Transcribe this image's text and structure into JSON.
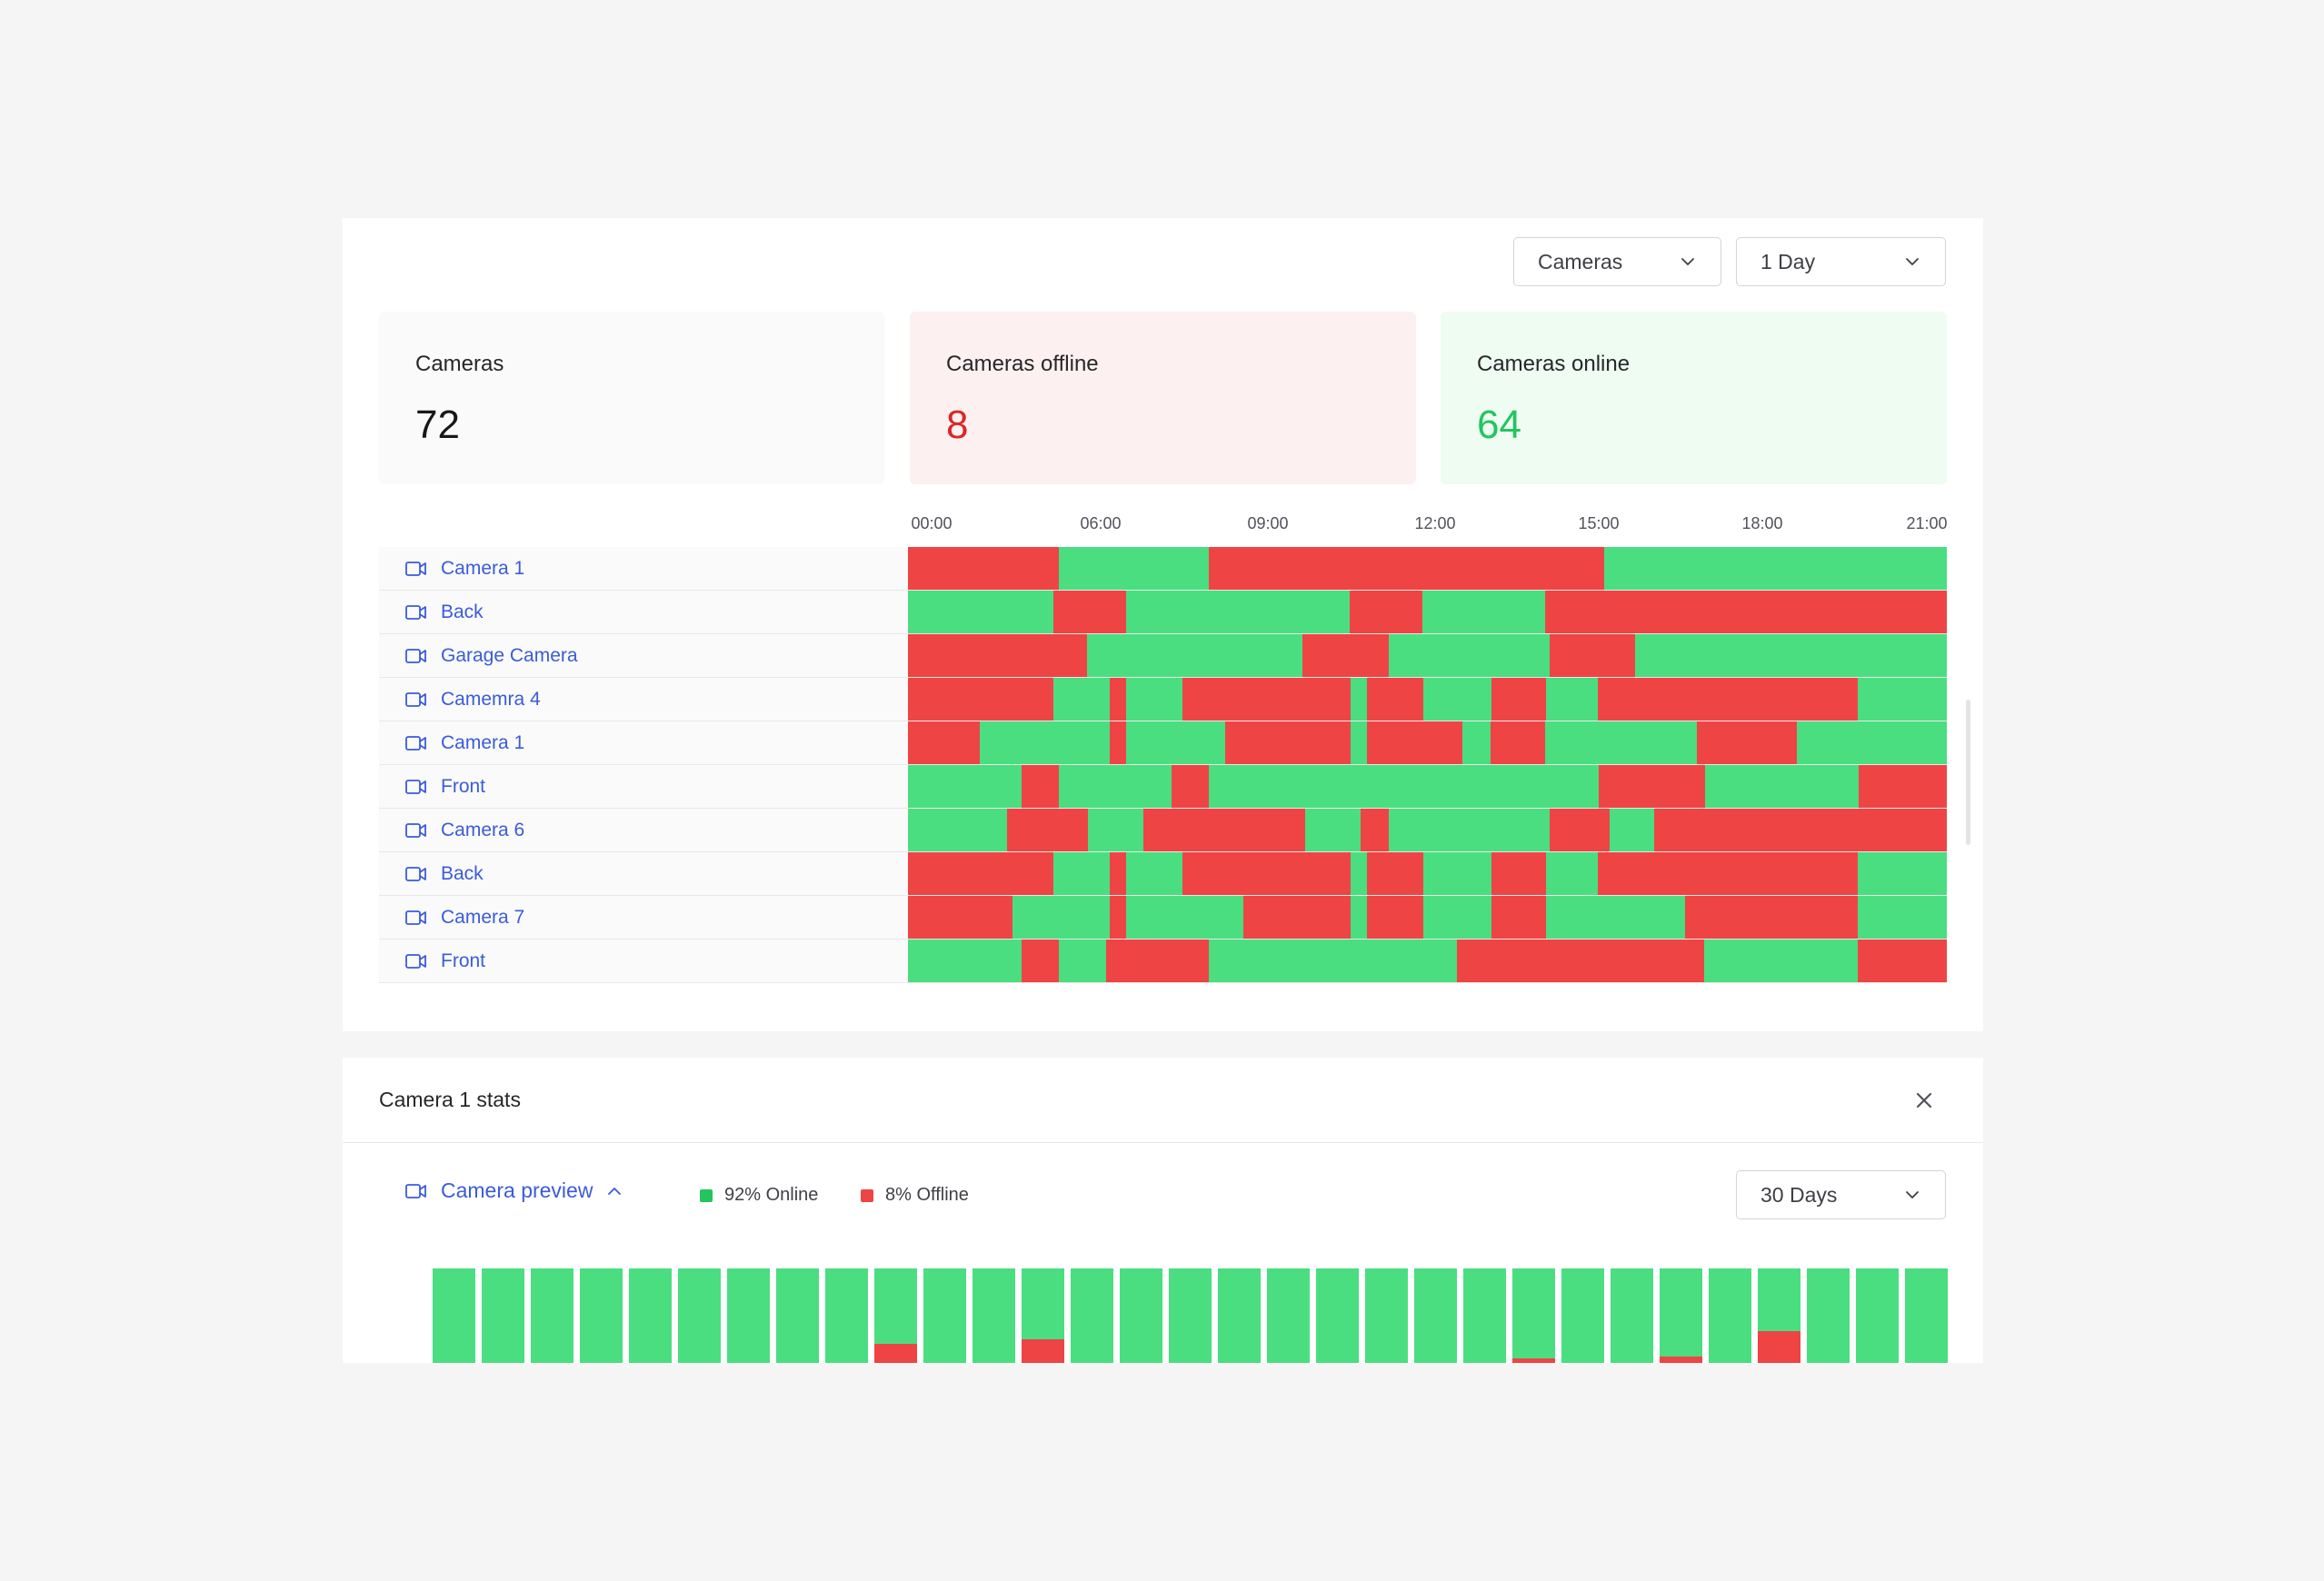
{
  "filters": {
    "type_select": "Cameras",
    "range_select": "1 Day"
  },
  "stats": {
    "total": {
      "label": "Cameras",
      "value": "72"
    },
    "offline": {
      "label": "Cameras offline",
      "value": "8"
    },
    "online": {
      "label": "Cameras online",
      "value": "64"
    }
  },
  "colors": {
    "online": "#4ade80",
    "offline": "#ef4444",
    "link": "#3b5bdb"
  },
  "timeline": {
    "axis_labels": [
      "00:00",
      "06:00",
      "09:00",
      "12:00",
      "15:00",
      "18:00",
      "21:00"
    ],
    "rows": [
      {
        "name": "Camera 1",
        "segments": [
          [
            "off",
            0.145
          ],
          [
            "on",
            0.145
          ],
          [
            "off",
            0.38
          ],
          [
            "on",
            0.33
          ]
        ]
      },
      {
        "name": "Back",
        "segments": [
          [
            "on",
            0.14
          ],
          [
            "off",
            0.07
          ],
          [
            "on",
            0.215
          ],
          [
            "off",
            0.07
          ],
          [
            "on",
            0.118
          ],
          [
            "off",
            0.387
          ]
        ]
      },
      {
        "name": "Garage Camera",
        "segments": [
          [
            "off",
            0.172
          ],
          [
            "on",
            0.208
          ],
          [
            "off",
            0.083
          ],
          [
            "on",
            0.155
          ],
          [
            "off",
            0.082
          ],
          [
            "on",
            0.3
          ]
        ]
      },
      {
        "name": "Camemra 4",
        "segments": [
          [
            "off",
            0.14
          ],
          [
            "on",
            0.054
          ],
          [
            "off",
            0.016
          ],
          [
            "on",
            0.054
          ],
          [
            "off",
            0.162
          ],
          [
            "on",
            0.016
          ],
          [
            "off",
            0.054
          ],
          [
            "on",
            0.066
          ],
          [
            "off",
            0.052
          ],
          [
            "on",
            0.05
          ],
          [
            "off",
            0.25
          ],
          [
            "on",
            0.086
          ]
        ]
      },
      {
        "name": "Camera 1",
        "segments": [
          [
            "off",
            0.069
          ],
          [
            "on",
            0.125
          ],
          [
            "off",
            0.016
          ],
          [
            "on",
            0.095
          ],
          [
            "off",
            0.121
          ],
          [
            "on",
            0.016
          ],
          [
            "off",
            0.092
          ],
          [
            "on",
            0.027
          ],
          [
            "off",
            0.052
          ],
          [
            "on",
            0.146
          ],
          [
            "off",
            0.097
          ],
          [
            "on",
            0.144
          ]
        ]
      },
      {
        "name": "Front",
        "segments": [
          [
            "on",
            0.109
          ],
          [
            "off",
            0.036
          ],
          [
            "on",
            0.109
          ],
          [
            "off",
            0.036
          ],
          [
            "on",
            0.375
          ],
          [
            "off",
            0.102
          ],
          [
            "on",
            0.148
          ],
          [
            "off",
            0.085
          ]
        ]
      },
      {
        "name": "Camera 6",
        "segments": [
          [
            "on",
            0.095
          ],
          [
            "off",
            0.078
          ],
          [
            "on",
            0.054
          ],
          [
            "off",
            0.155
          ],
          [
            "on",
            0.054
          ],
          [
            "off",
            0.027
          ],
          [
            "on",
            0.155
          ],
          [
            "off",
            0.057
          ],
          [
            "on",
            0.043
          ],
          [
            "off",
            0.282
          ]
        ]
      },
      {
        "name": "Back",
        "segments": [
          [
            "off",
            0.14
          ],
          [
            "on",
            0.054
          ],
          [
            "off",
            0.016
          ],
          [
            "on",
            0.054
          ],
          [
            "off",
            0.162
          ],
          [
            "on",
            0.016
          ],
          [
            "off",
            0.054
          ],
          [
            "on",
            0.066
          ],
          [
            "off",
            0.052
          ],
          [
            "on",
            0.05
          ],
          [
            "off",
            0.25
          ],
          [
            "on",
            0.086
          ]
        ]
      },
      {
        "name": "Camera 7",
        "segments": [
          [
            "off",
            0.101
          ],
          [
            "on",
            0.093
          ],
          [
            "off",
            0.016
          ],
          [
            "on",
            0.113
          ],
          [
            "off",
            0.103
          ],
          [
            "on",
            0.016
          ],
          [
            "off",
            0.054
          ],
          [
            "on",
            0.066
          ],
          [
            "off",
            0.052
          ],
          [
            "on",
            0.134
          ],
          [
            "off",
            0.166
          ],
          [
            "on",
            0.086
          ]
        ]
      },
      {
        "name": "Front",
        "segments": [
          [
            "on",
            0.109
          ],
          [
            "off",
            0.036
          ],
          [
            "on",
            0.046
          ],
          [
            "off",
            0.099
          ],
          [
            "on",
            0.238
          ],
          [
            "off",
            0.238
          ],
          [
            "on",
            0.148
          ],
          [
            "off",
            0.086
          ]
        ]
      }
    ]
  },
  "detail": {
    "title": "Camera 1 stats",
    "preview_label": "Camera preview",
    "legend_online": "92% Online",
    "legend_offline": "8% Offline",
    "range_select": "30 Days",
    "days_offline_fraction": [
      0,
      0,
      0,
      0,
      0,
      0,
      0,
      0,
      0,
      0.2,
      0,
      0,
      0.25,
      0,
      0,
      0,
      0,
      0,
      0,
      0,
      0,
      0,
      0.05,
      0,
      0,
      0.07,
      0,
      0.34,
      0,
      0,
      0
    ]
  }
}
